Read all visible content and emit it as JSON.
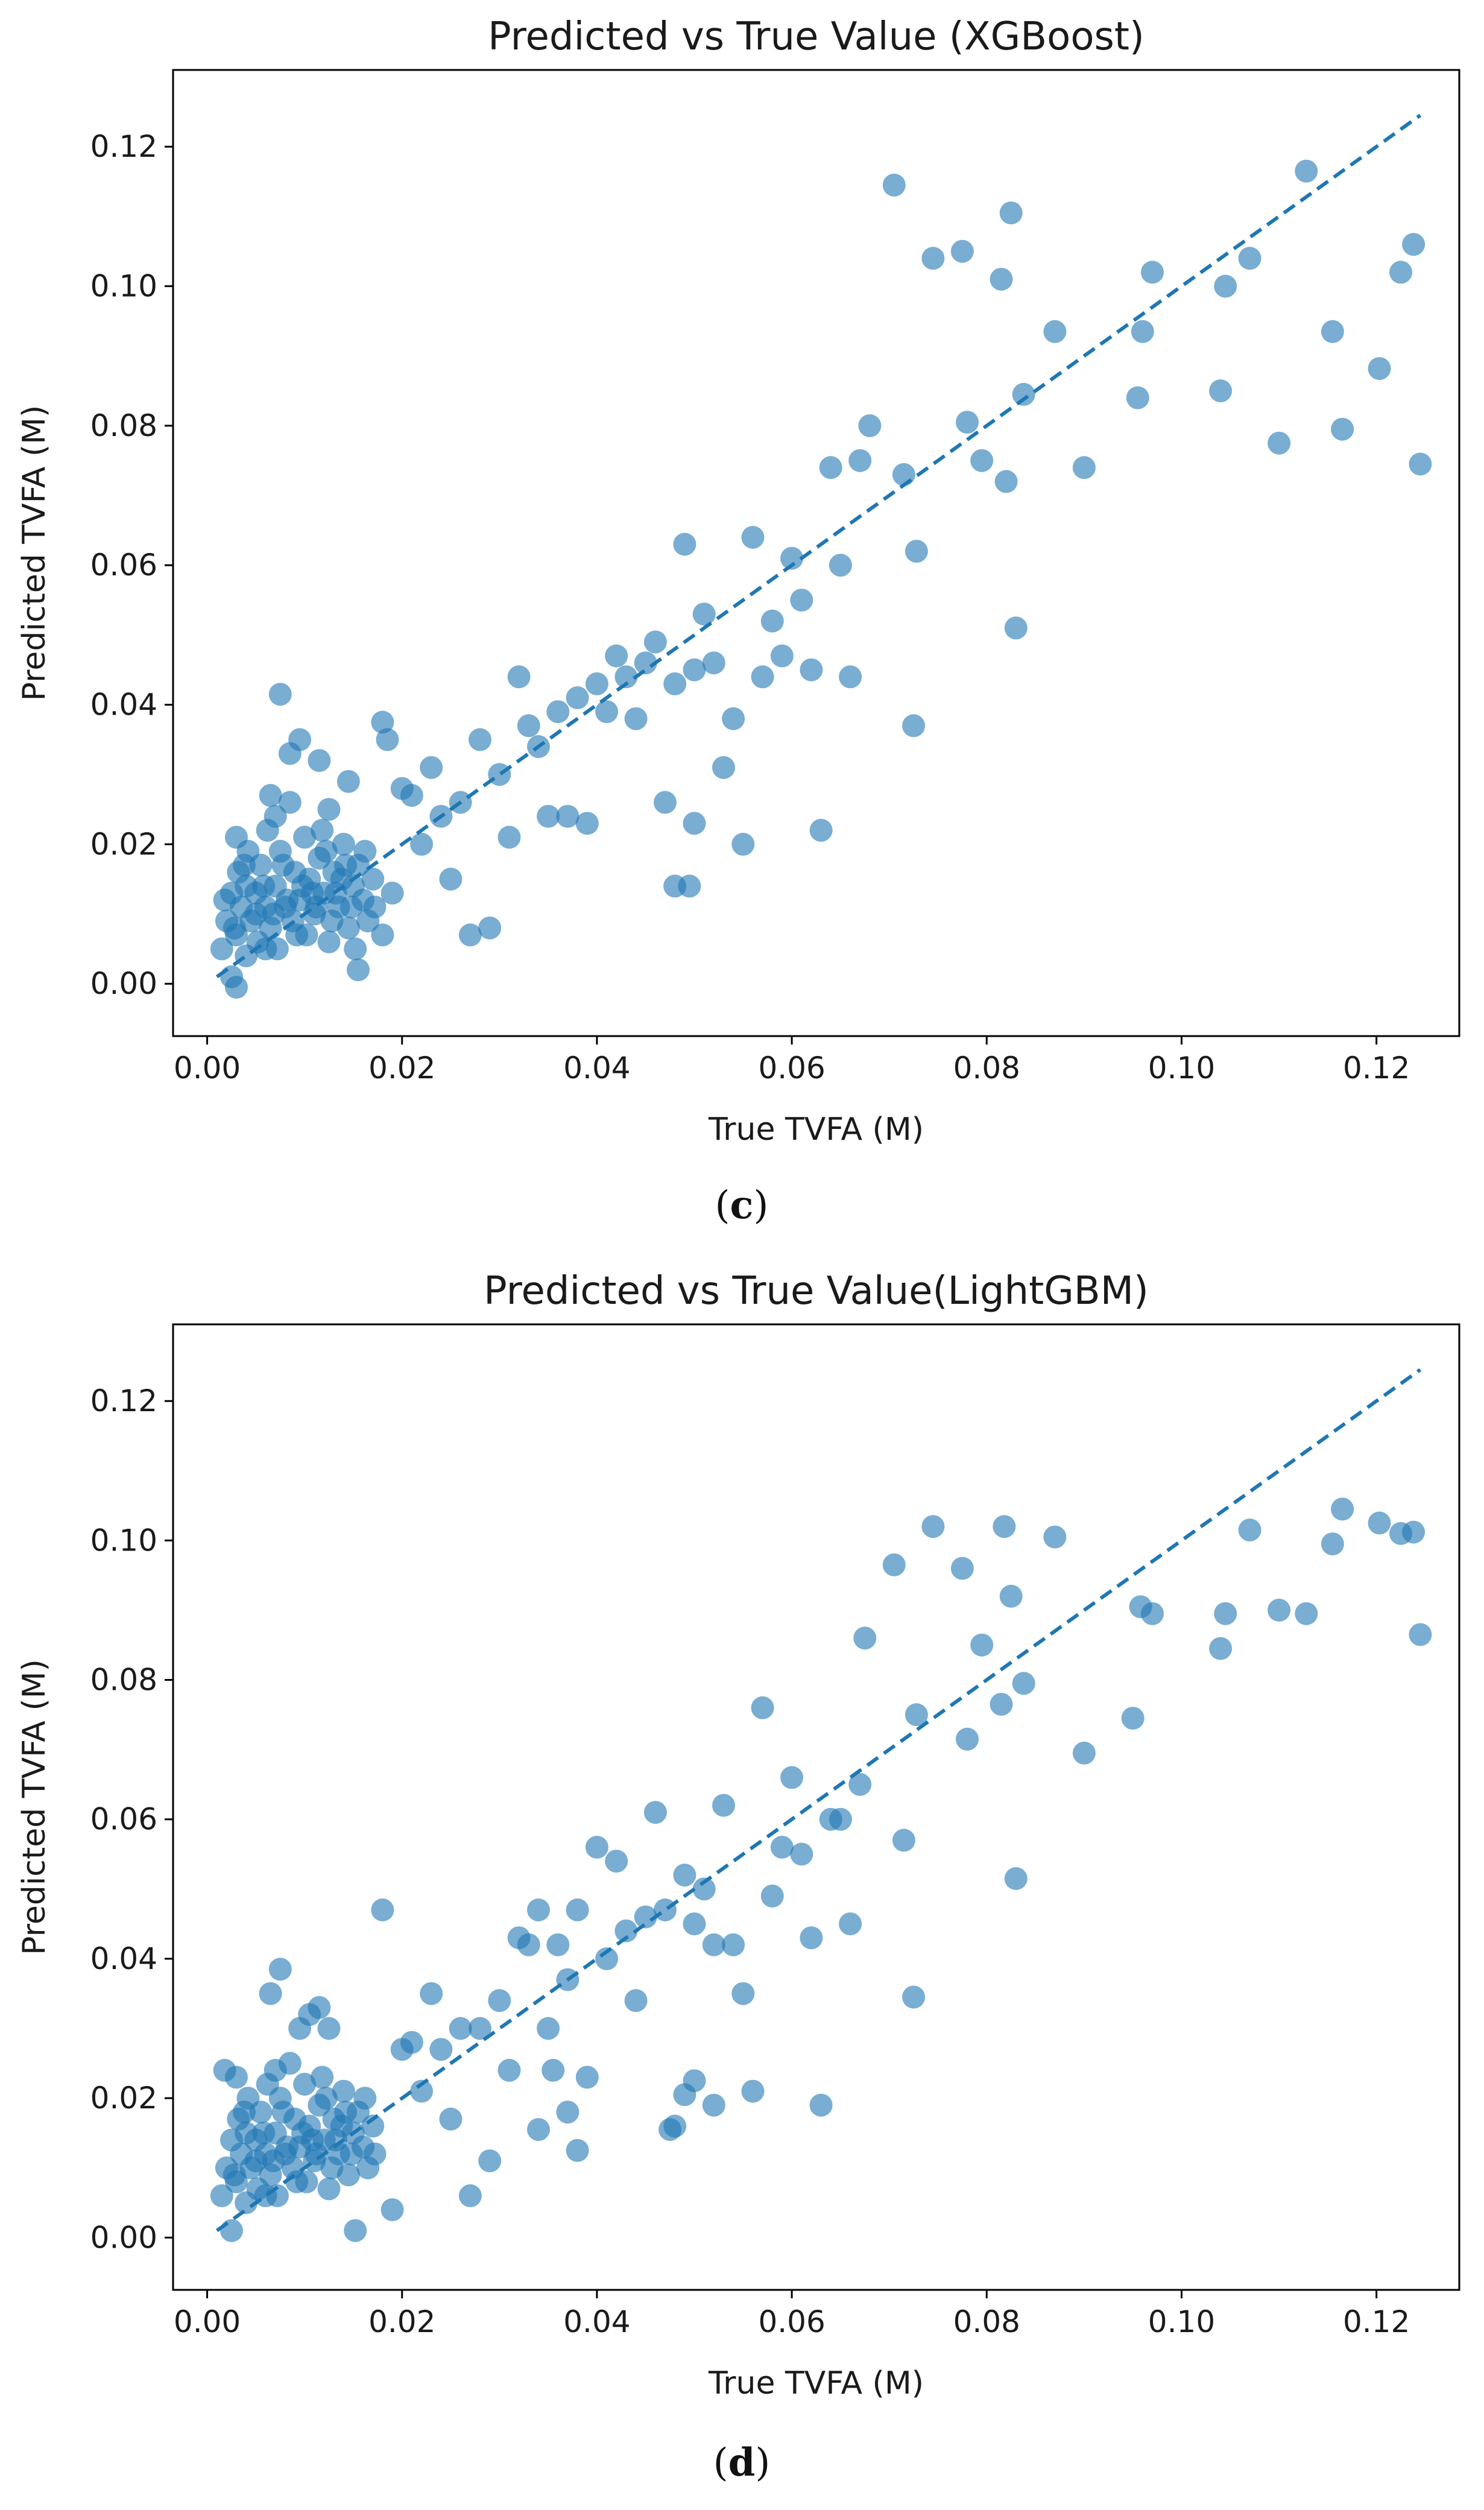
{
  "colors": {
    "marker": "#1f77b4",
    "axis": "#000000"
  },
  "chart_data": [
    {
      "type": "scatter",
      "title": "Predicted vs True Value (XGBoost)",
      "xlabel": "True TVFA (M)",
      "ylabel": "Predicted TVFA (M)",
      "xlim": [
        -0.0035,
        0.1285
      ],
      "ylim": [
        -0.0075,
        0.131
      ],
      "xticks": [
        "0.00",
        "0.02",
        "0.04",
        "0.06",
        "0.08",
        "0.10",
        "0.12"
      ],
      "yticks": [
        "0.00",
        "0.02",
        "0.04",
        "0.06",
        "0.08",
        "0.10",
        "0.12"
      ],
      "reference_line": {
        "style": "dashed",
        "x": [
          0.001,
          0.1245
        ],
        "y": [
          0.001,
          0.1245
        ]
      },
      "caption": {
        "open": "(",
        "letter": "c",
        "close": ")"
      },
      "points": [
        [
          0.0015,
          0.005
        ],
        [
          0.002,
          0.009
        ],
        [
          0.0025,
          0.013
        ],
        [
          0.003,
          0.007
        ],
        [
          0.0032,
          0.016
        ],
        [
          0.0035,
          0.011
        ],
        [
          0.004,
          0.004
        ],
        [
          0.0042,
          0.019
        ],
        [
          0.0045,
          0.009
        ],
        [
          0.005,
          0.013
        ],
        [
          0.0052,
          0.006
        ],
        [
          0.0055,
          0.017
        ],
        [
          0.006,
          0.011
        ],
        [
          0.0062,
          0.022
        ],
        [
          0.0065,
          0.008
        ],
        [
          0.007,
          0.014
        ],
        [
          0.0072,
          0.005
        ],
        [
          0.0075,
          0.019
        ],
        [
          0.008,
          0.011
        ],
        [
          0.0085,
          0.026
        ],
        [
          0.0088,
          0.009
        ],
        [
          0.009,
          0.016
        ],
        [
          0.0095,
          0.012
        ],
        [
          0.01,
          0.021
        ],
        [
          0.0102,
          0.007
        ],
        [
          0.0105,
          0.015
        ],
        [
          0.011,
          0.01
        ],
        [
          0.0115,
          0.018
        ],
        [
          0.012,
          0.013
        ],
        [
          0.0125,
          0.006
        ],
        [
          0.013,
          0.016
        ],
        [
          0.0135,
          0.011
        ],
        [
          0.014,
          0.02
        ],
        [
          0.0145,
          0.008
        ],
        [
          0.015,
          0.014
        ],
        [
          0.0155,
          0.017
        ],
        [
          0.016,
          0.012
        ],
        [
          0.0165,
          0.009
        ],
        [
          0.017,
          0.015
        ],
        [
          0.0025,
          0.001
        ],
        [
          0.003,
          0.021
        ],
        [
          0.004,
          0.014
        ],
        [
          0.005,
          0.01
        ],
        [
          0.006,
          0.005
        ],
        [
          0.007,
          0.024
        ],
        [
          0.0082,
          0.012
        ],
        [
          0.0092,
          0.007
        ],
        [
          0.0108,
          0.013
        ],
        [
          0.0118,
          0.022
        ],
        [
          0.0128,
          0.009
        ],
        [
          0.0138,
          0.015
        ],
        [
          0.0148,
          0.011
        ],
        [
          0.0018,
          0.012
        ],
        [
          0.0028,
          0.008
        ],
        [
          0.0038,
          0.017
        ],
        [
          0.0058,
          0.014
        ],
        [
          0.0068,
          0.01
        ],
        [
          0.0078,
          0.017
        ],
        [
          0.0098,
          0.014
        ],
        [
          0.0112,
          0.011
        ],
        [
          0.0122,
          0.019
        ],
        [
          0.0132,
          0.013
        ],
        [
          0.0142,
          0.017
        ],
        [
          0.0152,
          0.005
        ],
        [
          0.0162,
          0.019
        ],
        [
          0.0172,
          0.011
        ],
        [
          0.003,
          -0.0005
        ],
        [
          0.0075,
          0.0415
        ],
        [
          0.0095,
          0.035
        ],
        [
          0.0085,
          0.033
        ],
        [
          0.0065,
          0.027
        ],
        [
          0.0115,
          0.032
        ],
        [
          0.0125,
          0.025
        ],
        [
          0.0145,
          0.029
        ],
        [
          0.0155,
          0.002
        ],
        [
          0.018,
          0.0375
        ],
        [
          0.0185,
          0.035
        ],
        [
          0.018,
          0.007
        ],
        [
          0.019,
          0.013
        ],
        [
          0.02,
          0.028
        ],
        [
          0.021,
          0.027
        ],
        [
          0.022,
          0.02
        ],
        [
          0.023,
          0.031
        ],
        [
          0.024,
          0.024
        ],
        [
          0.025,
          0.015
        ],
        [
          0.026,
          0.026
        ],
        [
          0.027,
          0.007
        ],
        [
          0.028,
          0.035
        ],
        [
          0.029,
          0.008
        ],
        [
          0.03,
          0.03
        ],
        [
          0.031,
          0.021
        ],
        [
          0.032,
          0.044
        ],
        [
          0.033,
          0.037
        ],
        [
          0.034,
          0.034
        ],
        [
          0.035,
          0.024
        ],
        [
          0.036,
          0.039
        ],
        [
          0.037,
          0.024
        ],
        [
          0.038,
          0.041
        ],
        [
          0.039,
          0.023
        ],
        [
          0.04,
          0.043
        ],
        [
          0.041,
          0.039
        ],
        [
          0.042,
          0.047
        ],
        [
          0.043,
          0.044
        ],
        [
          0.044,
          0.038
        ],
        [
          0.045,
          0.046
        ],
        [
          0.046,
          0.049
        ],
        [
          0.047,
          0.026
        ],
        [
          0.048,
          0.043
        ],
        [
          0.049,
          0.063
        ],
        [
          0.05,
          0.045
        ],
        [
          0.051,
          0.053
        ],
        [
          0.052,
          0.046
        ],
        [
          0.053,
          0.031
        ],
        [
          0.054,
          0.038
        ],
        [
          0.055,
          0.02
        ],
        [
          0.056,
          0.064
        ],
        [
          0.057,
          0.044
        ],
        [
          0.058,
          0.052
        ],
        [
          0.059,
          0.047
        ],
        [
          0.06,
          0.061
        ],
        [
          0.061,
          0.055
        ],
        [
          0.062,
          0.045
        ],
        [
          0.063,
          0.022
        ],
        [
          0.064,
          0.074
        ],
        [
          0.065,
          0.06
        ],
        [
          0.066,
          0.044
        ],
        [
          0.067,
          0.075
        ],
        [
          0.068,
          0.08
        ],
        [
          0.0705,
          0.1145
        ],
        [
          0.0715,
          0.073
        ],
        [
          0.0725,
          0.037
        ],
        [
          0.0728,
          0.062
        ],
        [
          0.0745,
          0.104
        ],
        [
          0.0775,
          0.105
        ],
        [
          0.078,
          0.0805
        ],
        [
          0.0795,
          0.075
        ],
        [
          0.0815,
          0.101
        ],
        [
          0.082,
          0.072
        ],
        [
          0.0825,
          0.1105
        ],
        [
          0.083,
          0.051
        ],
        [
          0.0838,
          0.0845
        ],
        [
          0.087,
          0.0935
        ],
        [
          0.09,
          0.074
        ],
        [
          0.0955,
          0.084
        ],
        [
          0.096,
          0.0935
        ],
        [
          0.097,
          0.102
        ],
        [
          0.104,
          0.085
        ],
        [
          0.1045,
          0.1
        ],
        [
          0.107,
          0.104
        ],
        [
          0.11,
          0.0775
        ],
        [
          0.1128,
          0.1165
        ],
        [
          0.1155,
          0.0935
        ],
        [
          0.1165,
          0.0795
        ],
        [
          0.1203,
          0.0882
        ],
        [
          0.1225,
          0.102
        ],
        [
          0.1238,
          0.106
        ],
        [
          0.1245,
          0.0745
        ],
        [
          0.048,
          0.014
        ],
        [
          0.0495,
          0.014
        ],
        [
          0.05,
          0.023
        ]
      ]
    },
    {
      "type": "scatter",
      "title": "Predicted vs True Value(LightGBM)",
      "xlabel": "True TVFA (M)",
      "ylabel": "Predicted TVFA (M)",
      "xlim": [
        -0.0035,
        0.1285
      ],
      "ylim": [
        -0.0075,
        0.131
      ],
      "xticks": [
        "0.00",
        "0.02",
        "0.04",
        "0.06",
        "0.08",
        "0.10",
        "0.12"
      ],
      "yticks": [
        "0.00",
        "0.02",
        "0.04",
        "0.06",
        "0.08",
        "0.10",
        "0.12"
      ],
      "reference_line": {
        "style": "dashed",
        "x": [
          0.001,
          0.1245
        ],
        "y": [
          0.001,
          0.1245
        ]
      },
      "caption": {
        "open": "(",
        "letter": "d",
        "close": ")"
      },
      "points": [
        [
          0.0015,
          0.006
        ],
        [
          0.002,
          0.01
        ],
        [
          0.0025,
          0.014
        ],
        [
          0.003,
          0.008
        ],
        [
          0.0032,
          0.017
        ],
        [
          0.0035,
          0.012
        ],
        [
          0.004,
          0.005
        ],
        [
          0.0042,
          0.02
        ],
        [
          0.0045,
          0.01
        ],
        [
          0.005,
          0.014
        ],
        [
          0.0052,
          0.007
        ],
        [
          0.0055,
          0.018
        ],
        [
          0.006,
          0.012
        ],
        [
          0.0062,
          0.022
        ],
        [
          0.0065,
          0.009
        ],
        [
          0.007,
          0.015
        ],
        [
          0.0072,
          0.006
        ],
        [
          0.0075,
          0.02
        ],
        [
          0.008,
          0.012
        ],
        [
          0.0085,
          0.025
        ],
        [
          0.0088,
          0.01
        ],
        [
          0.009,
          0.017
        ],
        [
          0.0095,
          0.013
        ],
        [
          0.01,
          0.022
        ],
        [
          0.0102,
          0.008
        ],
        [
          0.0105,
          0.016
        ],
        [
          0.011,
          0.011
        ],
        [
          0.0115,
          0.019
        ],
        [
          0.012,
          0.014
        ],
        [
          0.0125,
          0.007
        ],
        [
          0.013,
          0.017
        ],
        [
          0.0135,
          0.012
        ],
        [
          0.014,
          0.021
        ],
        [
          0.0145,
          0.009
        ],
        [
          0.015,
          0.015
        ],
        [
          0.0155,
          0.018
        ],
        [
          0.016,
          0.013
        ],
        [
          0.0165,
          0.01
        ],
        [
          0.017,
          0.016
        ],
        [
          0.0025,
          0.001
        ],
        [
          0.003,
          0.023
        ],
        [
          0.004,
          0.015
        ],
        [
          0.005,
          0.011
        ],
        [
          0.006,
          0.006
        ],
        [
          0.007,
          0.024
        ],
        [
          0.0082,
          0.013
        ],
        [
          0.0092,
          0.008
        ],
        [
          0.0108,
          0.014
        ],
        [
          0.0118,
          0.023
        ],
        [
          0.0128,
          0.01
        ],
        [
          0.0138,
          0.016
        ],
        [
          0.0148,
          0.012
        ],
        [
          0.0018,
          0.024
        ],
        [
          0.0028,
          0.009
        ],
        [
          0.0038,
          0.018
        ],
        [
          0.0058,
          0.015
        ],
        [
          0.0068,
          0.011
        ],
        [
          0.0078,
          0.018
        ],
        [
          0.0098,
          0.015
        ],
        [
          0.0112,
          0.012
        ],
        [
          0.0122,
          0.02
        ],
        [
          0.0132,
          0.014
        ],
        [
          0.0142,
          0.018
        ],
        [
          0.0152,
          0.001
        ],
        [
          0.0162,
          0.02
        ],
        [
          0.0172,
          0.012
        ],
        [
          0.0075,
          0.0385
        ],
        [
          0.0065,
          0.035
        ],
        [
          0.0115,
          0.033
        ],
        [
          0.0125,
          0.03
        ],
        [
          0.0105,
          0.032
        ],
        [
          0.0095,
          0.03
        ],
        [
          0.018,
          0.047
        ],
        [
          0.019,
          0.004
        ],
        [
          0.02,
          0.027
        ],
        [
          0.021,
          0.028
        ],
        [
          0.022,
          0.021
        ],
        [
          0.023,
          0.035
        ],
        [
          0.024,
          0.027
        ],
        [
          0.025,
          0.017
        ],
        [
          0.026,
          0.03
        ],
        [
          0.027,
          0.006
        ],
        [
          0.028,
          0.03
        ],
        [
          0.029,
          0.011
        ],
        [
          0.03,
          0.034
        ],
        [
          0.031,
          0.024
        ],
        [
          0.032,
          0.043
        ],
        [
          0.033,
          0.042
        ],
        [
          0.034,
          0.047
        ],
        [
          0.035,
          0.03
        ],
        [
          0.036,
          0.042
        ],
        [
          0.037,
          0.037
        ],
        [
          0.038,
          0.047
        ],
        [
          0.039,
          0.023
        ],
        [
          0.04,
          0.056
        ],
        [
          0.041,
          0.04
        ],
        [
          0.042,
          0.054
        ],
        [
          0.043,
          0.044
        ],
        [
          0.044,
          0.034
        ],
        [
          0.045,
          0.046
        ],
        [
          0.046,
          0.061
        ],
        [
          0.047,
          0.047
        ],
        [
          0.048,
          0.016
        ],
        [
          0.049,
          0.052
        ],
        [
          0.05,
          0.045
        ],
        [
          0.051,
          0.05
        ],
        [
          0.052,
          0.042
        ],
        [
          0.053,
          0.062
        ],
        [
          0.054,
          0.042
        ],
        [
          0.055,
          0.035
        ],
        [
          0.056,
          0.021
        ],
        [
          0.057,
          0.076
        ],
        [
          0.058,
          0.049
        ],
        [
          0.059,
          0.056
        ],
        [
          0.06,
          0.066
        ],
        [
          0.061,
          0.055
        ],
        [
          0.062,
          0.043
        ],
        [
          0.063,
          0.019
        ],
        [
          0.064,
          0.06
        ],
        [
          0.065,
          0.06
        ],
        [
          0.066,
          0.045
        ],
        [
          0.067,
          0.065
        ],
        [
          0.0675,
          0.086
        ],
        [
          0.0705,
          0.0965
        ],
        [
          0.0715,
          0.057
        ],
        [
          0.0725,
          0.0345
        ],
        [
          0.0728,
          0.075
        ],
        [
          0.0745,
          0.102
        ],
        [
          0.0775,
          0.096
        ],
        [
          0.078,
          0.0715
        ],
        [
          0.0795,
          0.085
        ],
        [
          0.0815,
          0.0765
        ],
        [
          0.0818,
          0.102
        ],
        [
          0.0825,
          0.092
        ],
        [
          0.083,
          0.0515
        ],
        [
          0.0838,
          0.0795
        ],
        [
          0.087,
          0.1005
        ],
        [
          0.09,
          0.0695
        ],
        [
          0.095,
          0.0745
        ],
        [
          0.0958,
          0.0905
        ],
        [
          0.097,
          0.0895
        ],
        [
          0.104,
          0.0845
        ],
        [
          0.1045,
          0.0895
        ],
        [
          0.107,
          0.1015
        ],
        [
          0.11,
          0.09
        ],
        [
          0.1128,
          0.0895
        ],
        [
          0.1155,
          0.0995
        ],
        [
          0.1165,
          0.1045
        ],
        [
          0.1203,
          0.1025
        ],
        [
          0.1225,
          0.101
        ],
        [
          0.1238,
          0.1012
        ],
        [
          0.1245,
          0.0865
        ],
        [
          0.0475,
          0.0155
        ],
        [
          0.049,
          0.0205
        ],
        [
          0.05,
          0.0225
        ],
        [
          0.052,
          0.019
        ],
        [
          0.0355,
          0.024
        ],
        [
          0.037,
          0.018
        ],
        [
          0.038,
          0.0125
        ],
        [
          0.034,
          0.0155
        ]
      ]
    }
  ]
}
